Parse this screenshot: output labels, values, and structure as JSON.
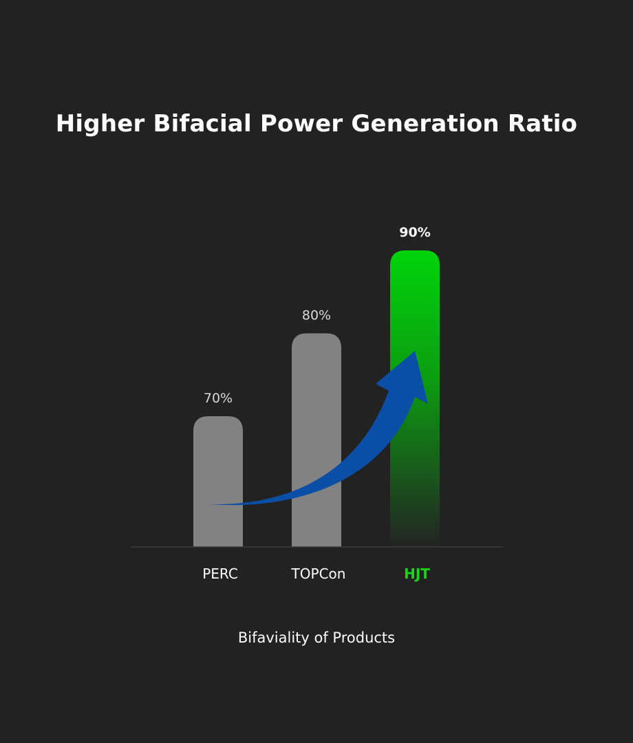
{
  "chart_data": {
    "type": "bar",
    "title": "Higher Bifacial Power Generation Ratio",
    "xlabel": "Bifaviality of Products",
    "ylabel": "",
    "categories": [
      "PERC",
      "TOPCon",
      "HJT"
    ],
    "values": [
      70,
      80,
      90
    ],
    "data_labels": [
      "70%",
      "80%",
      "90%"
    ],
    "highlight_category": "HJT",
    "grid": false,
    "annotations": [
      "upward-trend-arrow"
    ]
  },
  "colors": {
    "background": "#222222",
    "bar_default": "#828282",
    "bar_highlight": "#00d40a",
    "highlight_text": "#19d51a",
    "arrow": "#0a4ea6",
    "baseline": "#3a3a3a"
  }
}
